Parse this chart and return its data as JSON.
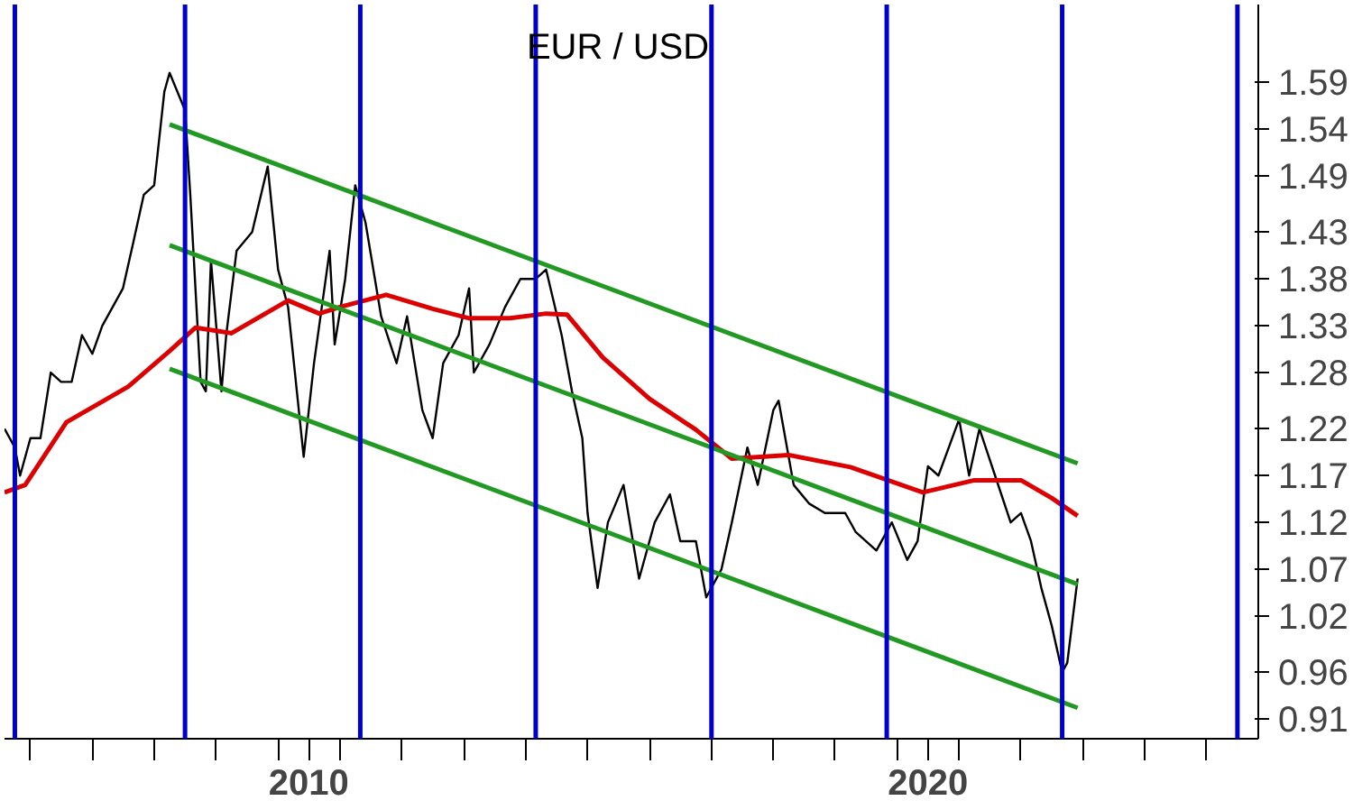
{
  "chart_data": {
    "type": "line",
    "title": "EUR / USD",
    "grid": false,
    "xlim": [
      "2005-08",
      "2025-11"
    ],
    "xticks": [
      {
        "value": "2006",
        "label": null
      },
      {
        "value": "2007",
        "label": null
      },
      {
        "value": "2008",
        "label": null
      },
      {
        "value": "2009",
        "label": null
      },
      {
        "value": "2010",
        "label": null
      },
      {
        "value": "2010-07",
        "label": "2010"
      },
      {
        "value": "2011",
        "label": null
      },
      {
        "value": "2012",
        "label": null
      },
      {
        "value": "2013",
        "label": null
      },
      {
        "value": "2014",
        "label": null
      },
      {
        "value": "2015",
        "label": null
      },
      {
        "value": "2016",
        "label": null
      },
      {
        "value": "2017",
        "label": null
      },
      {
        "value": "2018",
        "label": null
      },
      {
        "value": "2019",
        "label": null
      },
      {
        "value": "2020",
        "label": null
      },
      {
        "value": "2020-07",
        "label": "2020"
      },
      {
        "value": "2021",
        "label": null
      },
      {
        "value": "2022",
        "label": null
      },
      {
        "value": "2023",
        "label": null
      },
      {
        "value": "2024",
        "label": null
      },
      {
        "value": "2025",
        "label": null
      }
    ],
    "ylim": [
      0.889,
      1.673
    ],
    "yticks": [
      0.91,
      0.96,
      1.02,
      1.07,
      1.12,
      1.17,
      1.22,
      1.28,
      1.33,
      1.38,
      1.43,
      1.49,
      1.54,
      1.59
    ],
    "series": [
      {
        "color": "#000000",
        "x": [
          "2005-08",
          "2005-10",
          "2005-11",
          "2006-01",
          "2006-03",
          "2006-05",
          "2006-07",
          "2006-09",
          "2006-11",
          "2007-01",
          "2007-03",
          "2007-05",
          "2007-07",
          "2007-09",
          "2007-11",
          "2008-01",
          "2008-03",
          "2008-04",
          "2008-07",
          "2008-08",
          "2008-10",
          "2008-11",
          "2008-12",
          "2009-02",
          "2009-03",
          "2009-05",
          "2009-08",
          "2009-11",
          "2010-01",
          "2010-03",
          "2010-06",
          "2010-08",
          "2010-11",
          "2010-12",
          "2011-02",
          "2011-04",
          "2011-06",
          "2011-09",
          "2011-12",
          "2012-02",
          "2012-05",
          "2012-07",
          "2012-09",
          "2012-12",
          "2013-02",
          "2013-03",
          "2013-06",
          "2013-09",
          "2013-12",
          "2014-03",
          "2014-05",
          "2014-08",
          "2014-10",
          "2014-12",
          "2015-01",
          "2015-03",
          "2015-05",
          "2015-08",
          "2015-11",
          "2016-02",
          "2016-05",
          "2016-07",
          "2016-10",
          "2016-12",
          "2017-03",
          "2017-05",
          "2017-08",
          "2017-10",
          "2018-01",
          "2018-02",
          "2018-05",
          "2018-08",
          "2018-11",
          "2019-03",
          "2019-05",
          "2019-09",
          "2019-12",
          "2020-03",
          "2020-05",
          "2020-07",
          "2020-09",
          "2021-01",
          "2021-03",
          "2021-05",
          "2021-08",
          "2021-11",
          "2022-01",
          "2022-03",
          "2022-05",
          "2022-07",
          "2022-09",
          "2022-10",
          "2022-12"
        ],
        "values": [
          1.22,
          1.2,
          1.17,
          1.21,
          1.21,
          1.28,
          1.27,
          1.27,
          1.32,
          1.3,
          1.33,
          1.35,
          1.37,
          1.42,
          1.47,
          1.48,
          1.58,
          1.6,
          1.56,
          1.47,
          1.27,
          1.26,
          1.4,
          1.26,
          1.32,
          1.41,
          1.43,
          1.5,
          1.39,
          1.35,
          1.19,
          1.29,
          1.41,
          1.31,
          1.38,
          1.48,
          1.44,
          1.34,
          1.29,
          1.34,
          1.24,
          1.21,
          1.29,
          1.32,
          1.37,
          1.28,
          1.31,
          1.35,
          1.38,
          1.38,
          1.39,
          1.32,
          1.26,
          1.21,
          1.13,
          1.05,
          1.12,
          1.16,
          1.06,
          1.12,
          1.15,
          1.1,
          1.1,
          1.04,
          1.07,
          1.12,
          1.2,
          1.16,
          1.24,
          1.25,
          1.16,
          1.14,
          1.13,
          1.13,
          1.11,
          1.09,
          1.12,
          1.08,
          1.1,
          1.18,
          1.17,
          1.23,
          1.17,
          1.22,
          1.17,
          1.12,
          1.13,
          1.1,
          1.05,
          1.01,
          0.96,
          0.97,
          1.06
        ]
      },
      {
        "color": "#dd0000",
        "x": [
          "2005-08",
          "2005-12",
          "2006-08",
          "2007-08",
          "2008-04",
          "2008-09",
          "2009-04",
          "2010-03",
          "2010-09",
          "2011-01",
          "2011-10",
          "2012-07",
          "2013-02",
          "2013-10",
          "2014-05",
          "2014-09",
          "2015-04",
          "2016-01",
          "2016-10",
          "2017-05",
          "2018-04",
          "2019-04",
          "2020-06",
          "2021-04",
          "2022-01",
          "2022-07",
          "2022-12"
        ],
        "values": [
          1.152,
          1.16,
          1.227,
          1.265,
          1.303,
          1.328,
          1.322,
          1.357,
          1.343,
          1.35,
          1.363,
          1.348,
          1.338,
          1.338,
          1.343,
          1.342,
          1.296,
          1.252,
          1.219,
          1.188,
          1.192,
          1.179,
          1.152,
          1.165,
          1.165,
          1.146,
          1.127
        ]
      },
      {
        "color": "#229922",
        "x": [
          "2008-04",
          "2022-12"
        ],
        "values": [
          1.545,
          1.183
        ]
      },
      {
        "color": "#229922",
        "x": [
          "2008-04",
          "2022-12"
        ],
        "values": [
          1.416,
          1.054
        ]
      },
      {
        "color": "#229922",
        "x": [
          "2008-04",
          "2022-12"
        ],
        "values": [
          1.284,
          0.922
        ]
      }
    ],
    "ref_lines": [
      {
        "axis": "x",
        "value": "2005-10",
        "color": "#0000cc"
      },
      {
        "axis": "x",
        "value": "2008-07",
        "color": "#0000cc"
      },
      {
        "axis": "x",
        "value": "2011-05",
        "color": "#0000cc"
      },
      {
        "axis": "x",
        "value": "2014-03",
        "color": "#0000cc"
      },
      {
        "axis": "x",
        "value": "2017-01",
        "color": "#0000cc"
      },
      {
        "axis": "x",
        "value": "2019-11",
        "color": "#0000cc"
      },
      {
        "axis": "x",
        "value": "2022-09",
        "color": "#0000cc"
      },
      {
        "axis": "x",
        "value": "2025-07",
        "color": "#0000cc"
      }
    ]
  }
}
